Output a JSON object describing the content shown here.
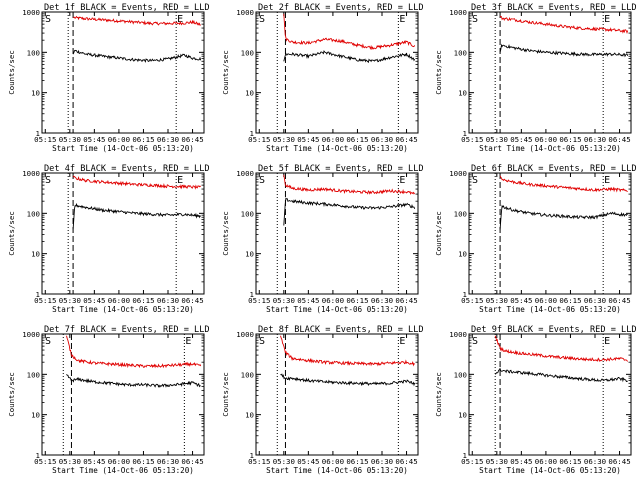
{
  "chart_data": [
    {
      "type": "line",
      "title": "Det 1f BLACK = Events, RED = LLD",
      "xlabel": "Start Time (14-Oct-06 05:13:20)",
      "ylabel": "Counts/sec",
      "x_ticks": [
        "05:15",
        "05:30",
        "05:45",
        "06:00",
        "06:15",
        "06:30",
        "06:45"
      ],
      "y_ticks": [
        "1",
        "10",
        "100",
        "1000"
      ],
      "xlim": [
        "05:13",
        "06:52"
      ],
      "ylim": [
        1,
        1000
      ],
      "y_scale": "log",
      "markers": {
        "start_label": "S",
        "end_label": "E",
        "start_time": "05:29",
        "dash_time": "05:32",
        "end_time": "06:35"
      },
      "series": [
        {
          "color": "#e00000",
          "x": [
            "05:32",
            "05:33",
            "05:40",
            "05:50",
            "06:00",
            "06:10",
            "06:20",
            "06:30",
            "06:40",
            "06:45",
            "06:50"
          ],
          "values": [
            750,
            720,
            680,
            640,
            600,
            560,
            520,
            520,
            530,
            560,
            480
          ]
        },
        {
          "color": "#000000",
          "x": [
            "05:32",
            "05:33",
            "05:40",
            "05:50",
            "06:00",
            "06:10",
            "06:20",
            "06:30",
            "06:40",
            "06:45",
            "06:50"
          ],
          "values": [
            90,
            110,
            90,
            80,
            72,
            65,
            62,
            68,
            85,
            72,
            68
          ]
        }
      ]
    },
    {
      "type": "line",
      "title": "Det 2f BLACK = Events, RED = LLD",
      "xlabel": "Start Time (14-Oct-06 05:13:20)",
      "ylabel": "Counts/sec",
      "x_ticks": [
        "05:15",
        "05:30",
        "05:45",
        "06:00",
        "06:15",
        "06:30",
        "06:45"
      ],
      "y_ticks": [
        "1",
        "10",
        "100",
        "1000"
      ],
      "xlim": [
        "05:13",
        "06:52"
      ],
      "ylim": [
        1,
        1000
      ],
      "y_scale": "log",
      "markers": {
        "start_label": "S",
        "end_label": "E",
        "start_time": "05:26",
        "dash_time": "05:31",
        "end_time": "06:40"
      },
      "series": [
        {
          "color": "#e00000",
          "x": [
            "05:30",
            "05:31",
            "05:35",
            "05:45",
            "05:55",
            "06:05",
            "06:15",
            "06:25",
            "06:35",
            "06:45",
            "06:50"
          ],
          "values": [
            900,
            220,
            180,
            170,
            210,
            190,
            150,
            130,
            150,
            180,
            140
          ]
        },
        {
          "color": "#000000",
          "x": [
            "05:30",
            "05:31",
            "05:35",
            "05:45",
            "05:55",
            "06:05",
            "06:15",
            "06:25",
            "06:35",
            "06:45",
            "06:50"
          ],
          "values": [
            60,
            90,
            90,
            80,
            100,
            80,
            65,
            60,
            75,
            90,
            65
          ]
        }
      ]
    },
    {
      "type": "line",
      "title": "Det 3f BLACK = Events, RED = LLD",
      "xlabel": "Start Time (14-Oct-06 05:13:20)",
      "ylabel": "Counts/sec",
      "x_ticks": [
        "05:15",
        "05:30",
        "05:45",
        "06:00",
        "06:15",
        "06:30",
        "06:45"
      ],
      "y_ticks": [
        "1",
        "10",
        "100",
        "1000"
      ],
      "xlim": [
        "05:13",
        "06:52"
      ],
      "ylim": [
        1,
        1000
      ],
      "y_scale": "log",
      "markers": {
        "start_label": "S",
        "end_label": "E",
        "start_time": "05:29",
        "dash_time": "05:32",
        "end_time": "06:35"
      },
      "series": [
        {
          "color": "#e00000",
          "x": [
            "05:32",
            "05:33",
            "05:40",
            "05:50",
            "06:00",
            "06:10",
            "06:20",
            "06:30",
            "06:40",
            "06:50"
          ],
          "values": [
            800,
            700,
            650,
            560,
            500,
            440,
            400,
            380,
            360,
            330
          ]
        },
        {
          "color": "#000000",
          "x": [
            "05:32",
            "05:33",
            "05:40",
            "05:50",
            "06:00",
            "06:10",
            "06:20",
            "06:30",
            "06:40",
            "06:50"
          ],
          "values": [
            100,
            150,
            130,
            110,
            100,
            95,
            90,
            88,
            90,
            85
          ]
        }
      ]
    },
    {
      "type": "line",
      "title": "Det 4f BLACK = Events, RED = LLD",
      "xlabel": "Start Time (14-Oct-06 05:13:20)",
      "ylabel": "Counts/sec",
      "x_ticks": [
        "05:15",
        "05:30",
        "05:45",
        "06:00",
        "06:15",
        "06:30",
        "06:45"
      ],
      "y_ticks": [
        "1",
        "10",
        "100",
        "1000"
      ],
      "xlim": [
        "05:13",
        "06:52"
      ],
      "ylim": [
        1,
        1000
      ],
      "y_scale": "log",
      "markers": {
        "start_label": "S",
        "end_label": "E",
        "start_time": "05:29",
        "dash_time": "05:32",
        "end_time": "06:35"
      },
      "series": [
        {
          "color": "#e00000",
          "x": [
            "05:32",
            "05:33",
            "05:40",
            "05:50",
            "06:00",
            "06:10",
            "06:20",
            "06:30",
            "06:40",
            "06:50"
          ],
          "values": [
            850,
            750,
            650,
            600,
            560,
            520,
            500,
            470,
            460,
            440
          ]
        },
        {
          "color": "#000000",
          "x": [
            "05:32",
            "05:33",
            "05:40",
            "05:50",
            "06:00",
            "06:10",
            "06:20",
            "06:30",
            "06:40",
            "06:50"
          ],
          "values": [
            40,
            160,
            140,
            120,
            110,
            100,
            95,
            90,
            95,
            85
          ]
        }
      ]
    },
    {
      "type": "line",
      "title": "Det 5f BLACK = Events, RED = LLD",
      "xlabel": "Start Time (14-Oct-06 05:13:20)",
      "ylabel": "Counts/sec",
      "x_ticks": [
        "05:15",
        "05:30",
        "05:45",
        "06:00",
        "06:15",
        "06:30",
        "06:45"
      ],
      "y_ticks": [
        "1",
        "10",
        "100",
        "1000"
      ],
      "xlim": [
        "05:13",
        "06:52"
      ],
      "ylim": [
        1,
        1000
      ],
      "y_scale": "log",
      "markers": {
        "start_label": "S",
        "end_label": "E",
        "start_time": "05:26",
        "dash_time": "05:31",
        "end_time": "06:40"
      },
      "series": [
        {
          "color": "#e00000",
          "x": [
            "05:30",
            "05:31",
            "05:35",
            "05:45",
            "05:55",
            "06:05",
            "06:15",
            "06:25",
            "06:35",
            "06:45",
            "06:50"
          ],
          "values": [
            900,
            500,
            420,
            380,
            400,
            360,
            340,
            330,
            360,
            340,
            300
          ]
        },
        {
          "color": "#000000",
          "x": [
            "05:30",
            "05:31",
            "05:35",
            "05:45",
            "05:55",
            "06:05",
            "06:15",
            "06:25",
            "06:35",
            "06:45",
            "06:50"
          ],
          "values": [
            50,
            220,
            200,
            180,
            170,
            155,
            140,
            135,
            145,
            165,
            140
          ]
        }
      ]
    },
    {
      "type": "line",
      "title": "Det 6f BLACK = Events, RED = LLD",
      "xlabel": "Start Time (14-Oct-06 05:13:20)",
      "ylabel": "Counts/sec",
      "x_ticks": [
        "05:15",
        "05:30",
        "05:45",
        "06:00",
        "06:15",
        "06:30",
        "06:45"
      ],
      "y_ticks": [
        "1",
        "10",
        "100",
        "1000"
      ],
      "xlim": [
        "05:13",
        "06:52"
      ],
      "ylim": [
        1,
        1000
      ],
      "y_scale": "log",
      "markers": {
        "start_label": "S",
        "end_label": "E",
        "start_time": "05:29",
        "dash_time": "05:32",
        "end_time": "06:35"
      },
      "series": [
        {
          "color": "#e00000",
          "x": [
            "05:32",
            "05:33",
            "05:40",
            "05:50",
            "06:00",
            "06:10",
            "06:20",
            "06:30",
            "06:40",
            "06:50"
          ],
          "values": [
            850,
            700,
            600,
            520,
            480,
            440,
            410,
            380,
            400,
            360
          ]
        },
        {
          "color": "#000000",
          "x": [
            "05:32",
            "05:33",
            "05:40",
            "05:50",
            "06:00",
            "06:10",
            "06:20",
            "06:30",
            "06:40",
            "06:50"
          ],
          "values": [
            40,
            150,
            120,
            100,
            90,
            85,
            80,
            80,
            100,
            90
          ]
        }
      ]
    },
    {
      "type": "line",
      "title": "Det 7f BLACK = Events, RED = LLD",
      "xlabel": "Start Time (14-Oct-06 05:13:20)",
      "ylabel": "Counts/sec",
      "x_ticks": [
        "05:15",
        "05:30",
        "05:45",
        "06:00",
        "06:15",
        "06:30",
        "06:45"
      ],
      "y_ticks": [
        "1",
        "10",
        "100",
        "1000"
      ],
      "xlim": [
        "05:13",
        "06:52"
      ],
      "ylim": [
        1,
        1000
      ],
      "y_scale": "log",
      "markers": {
        "start_label": "S",
        "end_label": "E",
        "start_time": "05:26",
        "dash_time": "05:31",
        "end_time": "06:40"
      },
      "series": [
        {
          "color": "#e00000",
          "x": [
            "05:28",
            "05:31",
            "05:35",
            "05:45",
            "05:55",
            "06:05",
            "06:15",
            "06:25",
            "06:35",
            "06:45",
            "06:50"
          ],
          "values": [
            900,
            300,
            220,
            190,
            180,
            170,
            160,
            160,
            170,
            180,
            160
          ]
        },
        {
          "color": "#000000",
          "x": [
            "05:28",
            "05:31",
            "05:35",
            "05:45",
            "05:55",
            "06:05",
            "06:15",
            "06:25",
            "06:35",
            "06:45",
            "06:50"
          ],
          "values": [
            100,
            70,
            75,
            65,
            60,
            55,
            55,
            52,
            55,
            62,
            52
          ]
        }
      ]
    },
    {
      "type": "line",
      "title": "Det 8f BLACK = Events, RED = LLD",
      "xlabel": "Start Time (14-Oct-06 05:13:20)",
      "ylabel": "Counts/sec",
      "x_ticks": [
        "05:15",
        "05:30",
        "05:45",
        "06:00",
        "06:15",
        "06:30",
        "06:45"
      ],
      "y_ticks": [
        "1",
        "10",
        "100",
        "1000"
      ],
      "xlim": [
        "05:13",
        "06:52"
      ],
      "ylim": [
        1,
        1000
      ],
      "y_scale": "log",
      "markers": {
        "start_label": "S",
        "end_label": "E",
        "start_time": "05:26",
        "dash_time": "05:31",
        "end_time": "06:40"
      },
      "series": [
        {
          "color": "#e00000",
          "x": [
            "05:28",
            "05:31",
            "05:35",
            "05:45",
            "05:55",
            "06:05",
            "06:15",
            "06:25",
            "06:35",
            "06:45",
            "06:50"
          ],
          "values": [
            900,
            350,
            250,
            220,
            200,
            190,
            185,
            180,
            190,
            200,
            180
          ]
        },
        {
          "color": "#000000",
          "x": [
            "05:28",
            "05:31",
            "05:35",
            "05:45",
            "05:55",
            "06:05",
            "06:15",
            "06:25",
            "06:35",
            "06:45",
            "06:50"
          ],
          "values": [
            100,
            80,
            80,
            70,
            65,
            62,
            60,
            58,
            60,
            68,
            58
          ]
        }
      ]
    },
    {
      "type": "line",
      "title": "Det 9f BLACK = Events, RED = LLD",
      "xlabel": "Start Time (14-Oct-06 05:13:20)",
      "ylabel": "Counts/sec",
      "x_ticks": [
        "05:15",
        "05:30",
        "05:45",
        "06:00",
        "06:15",
        "06:30",
        "06:45"
      ],
      "y_ticks": [
        "1",
        "10",
        "100",
        "1000"
      ],
      "xlim": [
        "05:13",
        "06:52"
      ],
      "ylim": [
        1,
        1000
      ],
      "y_scale": "log",
      "markers": {
        "start_label": "S",
        "end_label": "E",
        "start_time": "05:29",
        "dash_time": "05:32",
        "end_time": "06:35"
      },
      "series": [
        {
          "color": "#e00000",
          "x": [
            "05:29",
            "05:32",
            "05:35",
            "05:45",
            "05:55",
            "06:05",
            "06:15",
            "06:25",
            "06:35",
            "06:45",
            "06:50"
          ],
          "values": [
            900,
            450,
            380,
            330,
            300,
            270,
            250,
            235,
            230,
            245,
            225
          ]
        },
        {
          "color": "#000000",
          "x": [
            "05:29",
            "05:32",
            "05:35",
            "05:45",
            "05:55",
            "06:05",
            "06:15",
            "06:25",
            "06:35",
            "06:45",
            "06:50"
          ],
          "values": [
            100,
            130,
            120,
            110,
            100,
            90,
            82,
            75,
            70,
            78,
            70
          ]
        }
      ]
    }
  ]
}
